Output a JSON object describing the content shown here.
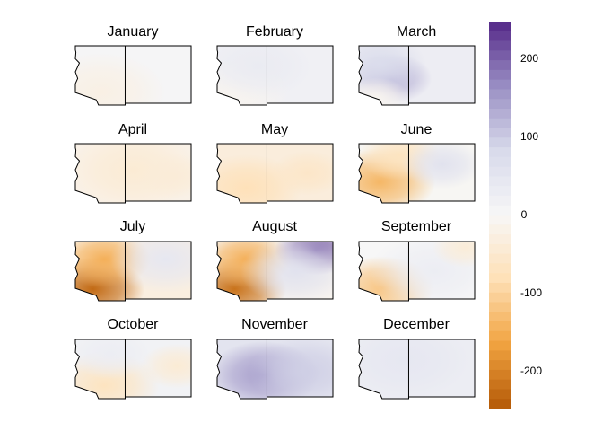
{
  "chart_data": {
    "type": "heatmap",
    "panel_titles": [
      "January",
      "February",
      "March",
      "April",
      "May",
      "June",
      "July",
      "August",
      "September",
      "October",
      "November",
      "December"
    ],
    "colorbar": {
      "ticks": [
        200,
        100,
        0,
        -100,
        -200
      ],
      "range": [
        -250,
        250
      ],
      "colors": [
        "#b35806",
        "#f1a340",
        "#fee0b6",
        "#f7f7f7",
        "#d8daeb",
        "#998ec3",
        "#542788"
      ]
    },
    "panels": [
      {
        "month": "January",
        "base": 6,
        "blobs": [
          {
            "u": 0.22,
            "v": 0.78,
            "r": 0.35,
            "val": -25
          }
        ]
      },
      {
        "month": "February",
        "base": 20,
        "blobs": [
          {
            "u": 0.15,
            "v": 0.8,
            "r": 0.3,
            "val": -10
          },
          {
            "u": 0.35,
            "v": 0.35,
            "r": 0.3,
            "val": 35
          }
        ]
      },
      {
        "month": "March",
        "base": 28,
        "blobs": [
          {
            "u": 0.28,
            "v": 0.55,
            "r": 0.22,
            "val": 125
          },
          {
            "u": 0.18,
            "v": 0.3,
            "r": 0.25,
            "val": 75
          },
          {
            "u": 0.15,
            "v": 0.88,
            "r": 0.18,
            "val": -10
          }
        ]
      },
      {
        "month": "April",
        "base": -20,
        "blobs": [
          {
            "u": 0.5,
            "v": 0.45,
            "r": 0.35,
            "val": -45
          },
          {
            "u": 0.85,
            "v": 0.55,
            "r": 0.2,
            "val": -40
          }
        ]
      },
      {
        "month": "May",
        "base": -35,
        "blobs": [
          {
            "u": 0.25,
            "v": 0.75,
            "r": 0.3,
            "val": -80
          },
          {
            "u": 0.78,
            "v": 0.5,
            "r": 0.2,
            "val": -60
          }
        ]
      },
      {
        "month": "June",
        "base": -5,
        "blobs": [
          {
            "u": 0.18,
            "v": 0.65,
            "r": 0.3,
            "val": -140
          },
          {
            "u": 0.35,
            "v": 0.2,
            "r": 0.22,
            "val": -70
          },
          {
            "u": 0.72,
            "v": 0.35,
            "r": 0.22,
            "val": 60
          }
        ]
      },
      {
        "month": "July",
        "base": -30,
        "blobs": [
          {
            "u": 0.15,
            "v": 0.8,
            "r": 0.28,
            "val": -230
          },
          {
            "u": 0.25,
            "v": 0.3,
            "r": 0.25,
            "val": -150
          },
          {
            "u": 0.78,
            "v": 0.3,
            "r": 0.3,
            "val": 45
          }
        ]
      },
      {
        "month": "August",
        "base": -10,
        "blobs": [
          {
            "u": 0.15,
            "v": 0.8,
            "r": 0.28,
            "val": -220
          },
          {
            "u": 0.25,
            "v": 0.3,
            "r": 0.25,
            "val": -150
          },
          {
            "u": 0.85,
            "v": 0.15,
            "r": 0.22,
            "val": 200
          },
          {
            "u": 0.68,
            "v": 0.5,
            "r": 0.3,
            "val": 60
          }
        ]
      },
      {
        "month": "September",
        "base": 0,
        "blobs": [
          {
            "u": 0.2,
            "v": 0.78,
            "r": 0.28,
            "val": -120
          },
          {
            "u": 0.65,
            "v": 0.5,
            "r": 0.35,
            "val": 30
          },
          {
            "u": 0.92,
            "v": 0.1,
            "r": 0.18,
            "val": -40
          }
        ]
      },
      {
        "month": "October",
        "base": 15,
        "blobs": [
          {
            "u": 0.25,
            "v": 0.78,
            "r": 0.3,
            "val": -70
          },
          {
            "u": 0.88,
            "v": 0.45,
            "r": 0.2,
            "val": -45
          },
          {
            "u": 0.3,
            "v": 0.25,
            "r": 0.22,
            "val": 30
          }
        ]
      },
      {
        "month": "November",
        "base": 55,
        "blobs": [
          {
            "u": 0.4,
            "v": 0.6,
            "r": 0.3,
            "val": 150
          },
          {
            "u": 0.75,
            "v": 0.55,
            "r": 0.3,
            "val": 95
          }
        ]
      },
      {
        "month": "December",
        "base": 30,
        "blobs": [
          {
            "u": 0.4,
            "v": 0.35,
            "r": 0.35,
            "val": 45
          }
        ]
      }
    ]
  }
}
